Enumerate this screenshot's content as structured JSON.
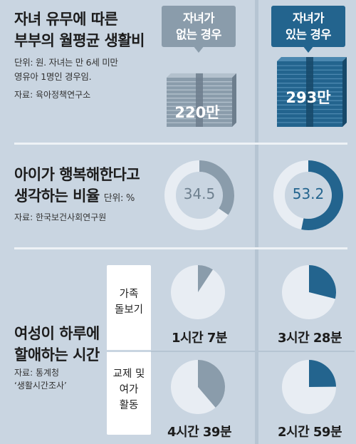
{
  "columns": [
    {
      "label_line1": "자녀가",
      "label_line2": "없는 경우"
    },
    {
      "label_line1": "자녀가",
      "label_line2": "있는 경우"
    }
  ],
  "section1": {
    "title_line1": "자녀 유무에 따른",
    "title_line2": "부부의 월평균 생활비",
    "note_line1": "단위: 원. 자녀는 만 6세 미만",
    "note_line2": "영유아 1명인 경우임.",
    "source": "자료: 육아정책연구소"
  },
  "section2": {
    "title_line1": "아이가 행복해한다고",
    "title_line2": "생각하는 비율",
    "unit": "단위: %",
    "source": "자료: 한국보건사회연구원"
  },
  "section3": {
    "title_line1": "여성이 하루에",
    "title_line2": "할애하는 시간",
    "source_line1": "자료: 통계청",
    "source_line2": "‘생활시간조사’",
    "row1_label_line1": "가족",
    "row1_label_line2": "돌보기",
    "row2_label_line1": "교제 및",
    "row2_label_line2": "여가",
    "row2_label_line3": "활동"
  },
  "colors": {
    "background": "#c9d5e1",
    "no_child": "#8a9cab",
    "with_child": "#23648e",
    "pie_base": "#e8edf3",
    "separator": "#eef2f6"
  },
  "chart_data": [
    {
      "type": "bar",
      "categories": [
        "자녀가 없는 경우",
        "자녀가 있는 경우"
      ],
      "values": [
        2200000,
        2930000
      ],
      "value_labels": [
        "220만",
        "293만"
      ],
      "unit": "원"
    },
    {
      "type": "pie",
      "categories": [
        "자녀가 없는 경우",
        "자녀가 있는 경우"
      ],
      "values": [
        34.5,
        53.2
      ],
      "value_labels": [
        "34.5",
        "53.2"
      ],
      "unit": "%"
    },
    {
      "type": "pie",
      "categories": [
        "자녀가 없는 경우",
        "자녀가 있는 경우"
      ],
      "activity": "가족 돌보기",
      "values_minutes": [
        67,
        208
      ],
      "value_labels": [
        "1시간 7분",
        "3시간 28분"
      ]
    },
    {
      "type": "pie",
      "categories": [
        "자녀가 없는 경우",
        "자녀가 있는 경우"
      ],
      "activity": "교제 및 여가 활동",
      "values_minutes": [
        279,
        179
      ],
      "value_labels": [
        "4시간 39분",
        "2시간 59분"
      ]
    }
  ]
}
